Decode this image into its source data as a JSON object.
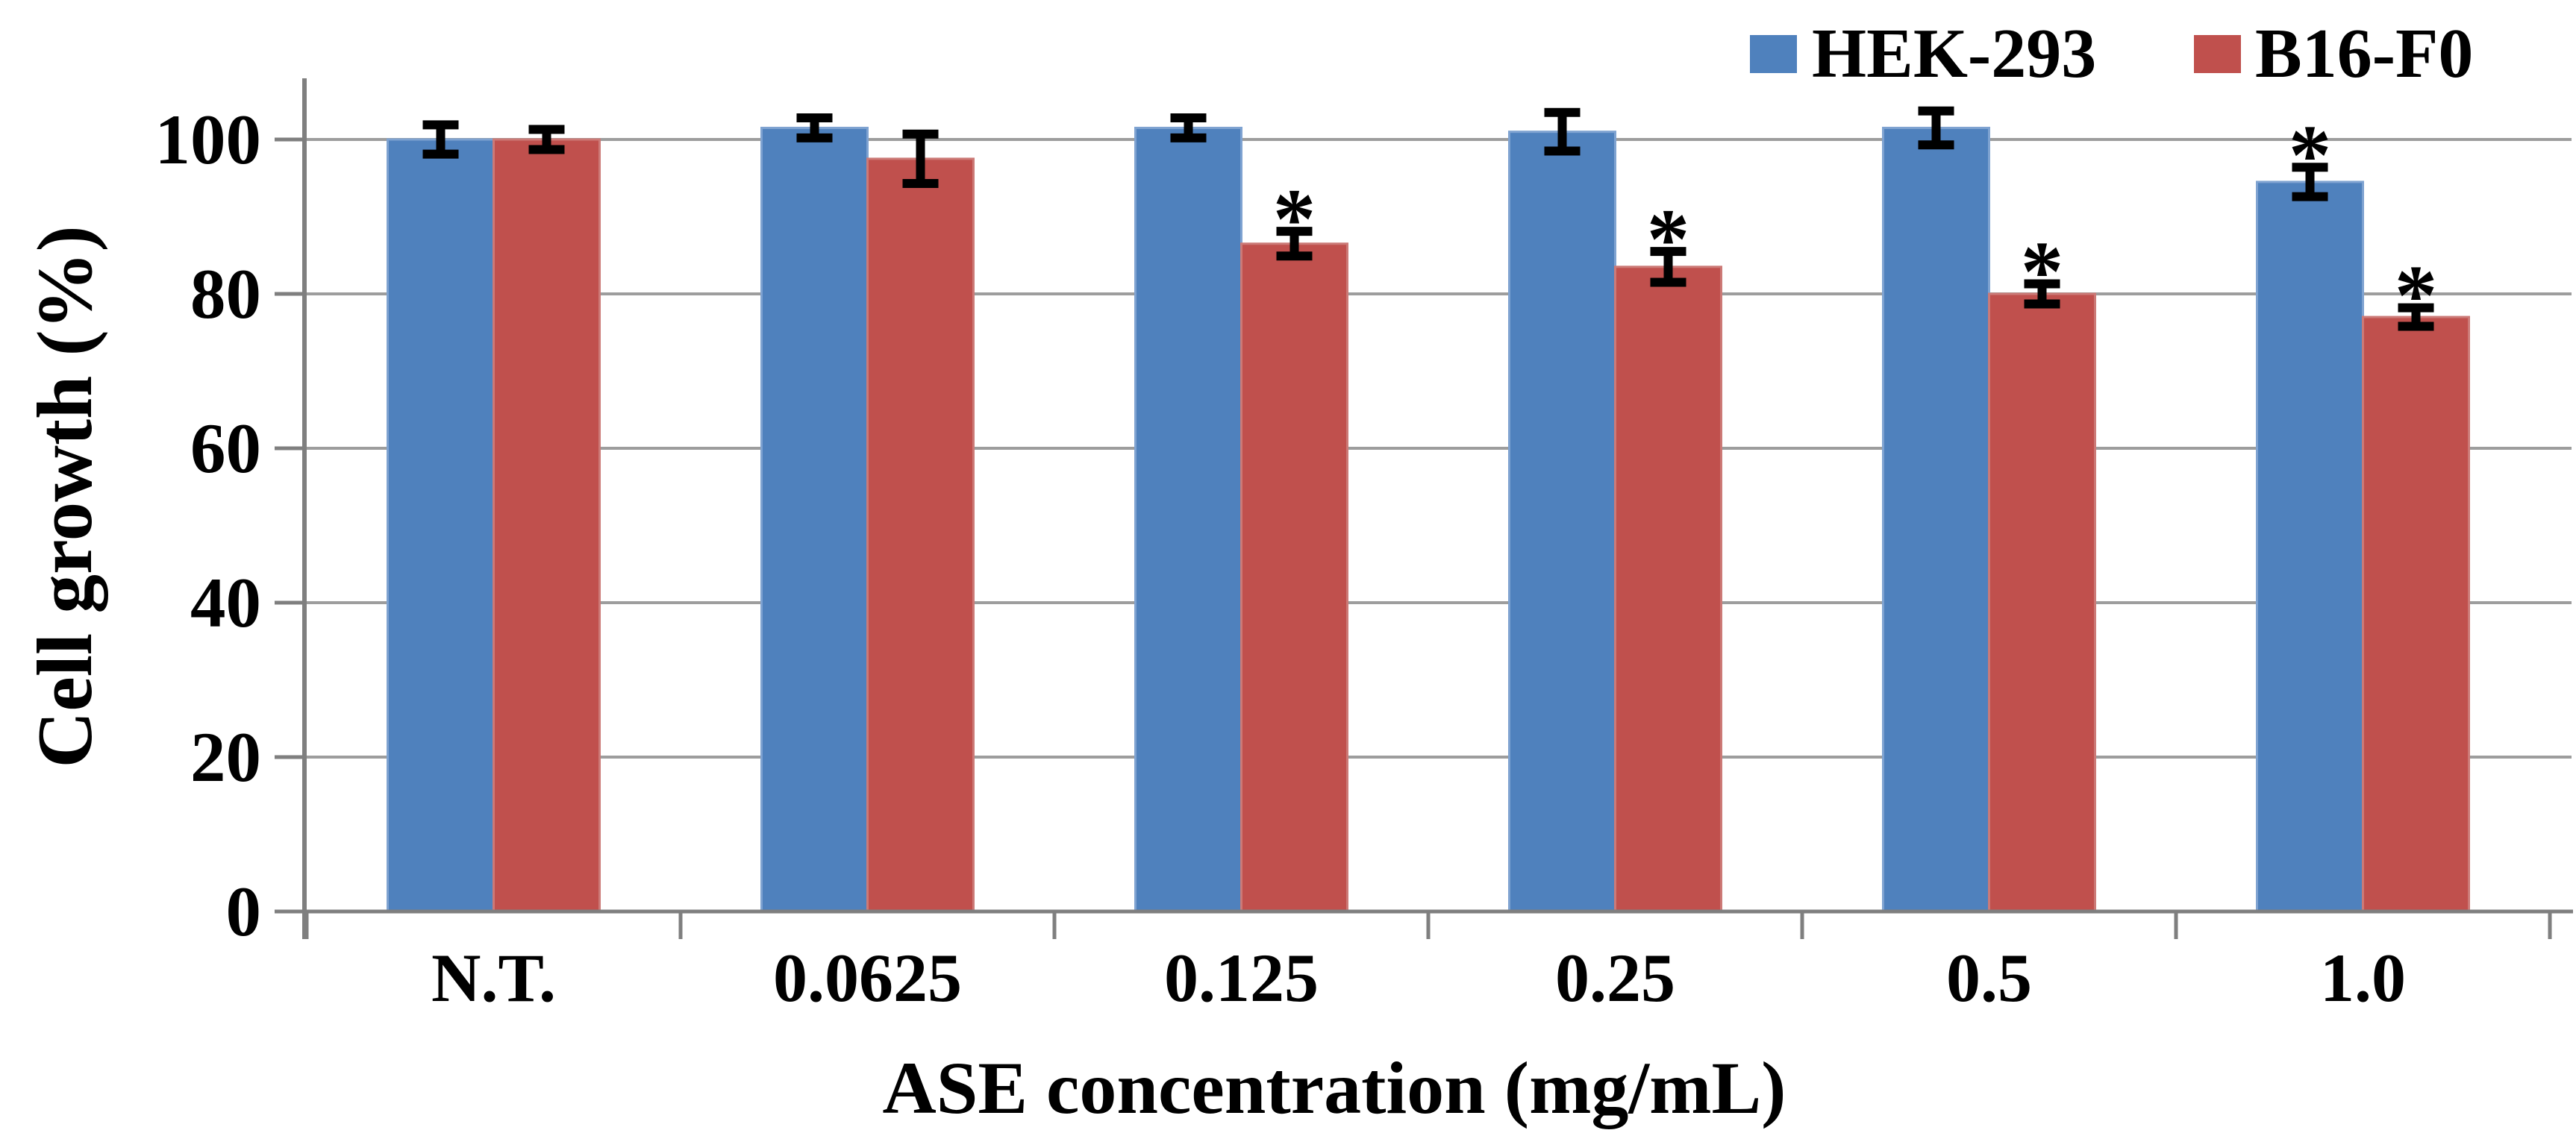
{
  "legend": {
    "items": [
      {
        "label": "HEK-293",
        "color": "#4F81BD"
      },
      {
        "label": "B16-F0",
        "color": "#C0504D"
      }
    ]
  },
  "chart_data": {
    "type": "bar",
    "title": "",
    "categories": [
      "N.T.",
      "0.0625",
      "0.125",
      "0.25",
      "0.5",
      "1.0"
    ],
    "xlabel": "ASE concentration (mg/mL)",
    "ylabel": "Cell growth (%)",
    "ylim": [
      0,
      100
    ],
    "yticks": [
      0,
      20,
      40,
      60,
      80,
      100
    ],
    "grid": true,
    "legend_position": "top-right",
    "significance_marker": "*",
    "grid_color": "#9D9D9D",
    "axis_color": "#7F7F7F",
    "error_bar_color": "#000000",
    "text_color": "#000000",
    "series": [
      {
        "name": "HEK-293",
        "color": "#4F81BD",
        "edge_color": "#7FA3D1",
        "values": [
          100,
          101.5,
          101.5,
          101,
          101.5,
          94.5
        ],
        "errors": [
          1.9,
          1.3,
          1.3,
          2.5,
          2.2,
          1.9
        ],
        "significant": [
          false,
          false,
          false,
          false,
          false,
          true
        ]
      },
      {
        "name": "B16-F0",
        "color": "#C0504D",
        "edge_color": "#CC7A77",
        "values": [
          100,
          97.5,
          86.5,
          83.5,
          80,
          77
        ],
        "errors": [
          1.3,
          3.2,
          1.6,
          2.0,
          1.3,
          1.2
        ],
        "significant": [
          false,
          false,
          true,
          true,
          true,
          true
        ]
      }
    ]
  }
}
